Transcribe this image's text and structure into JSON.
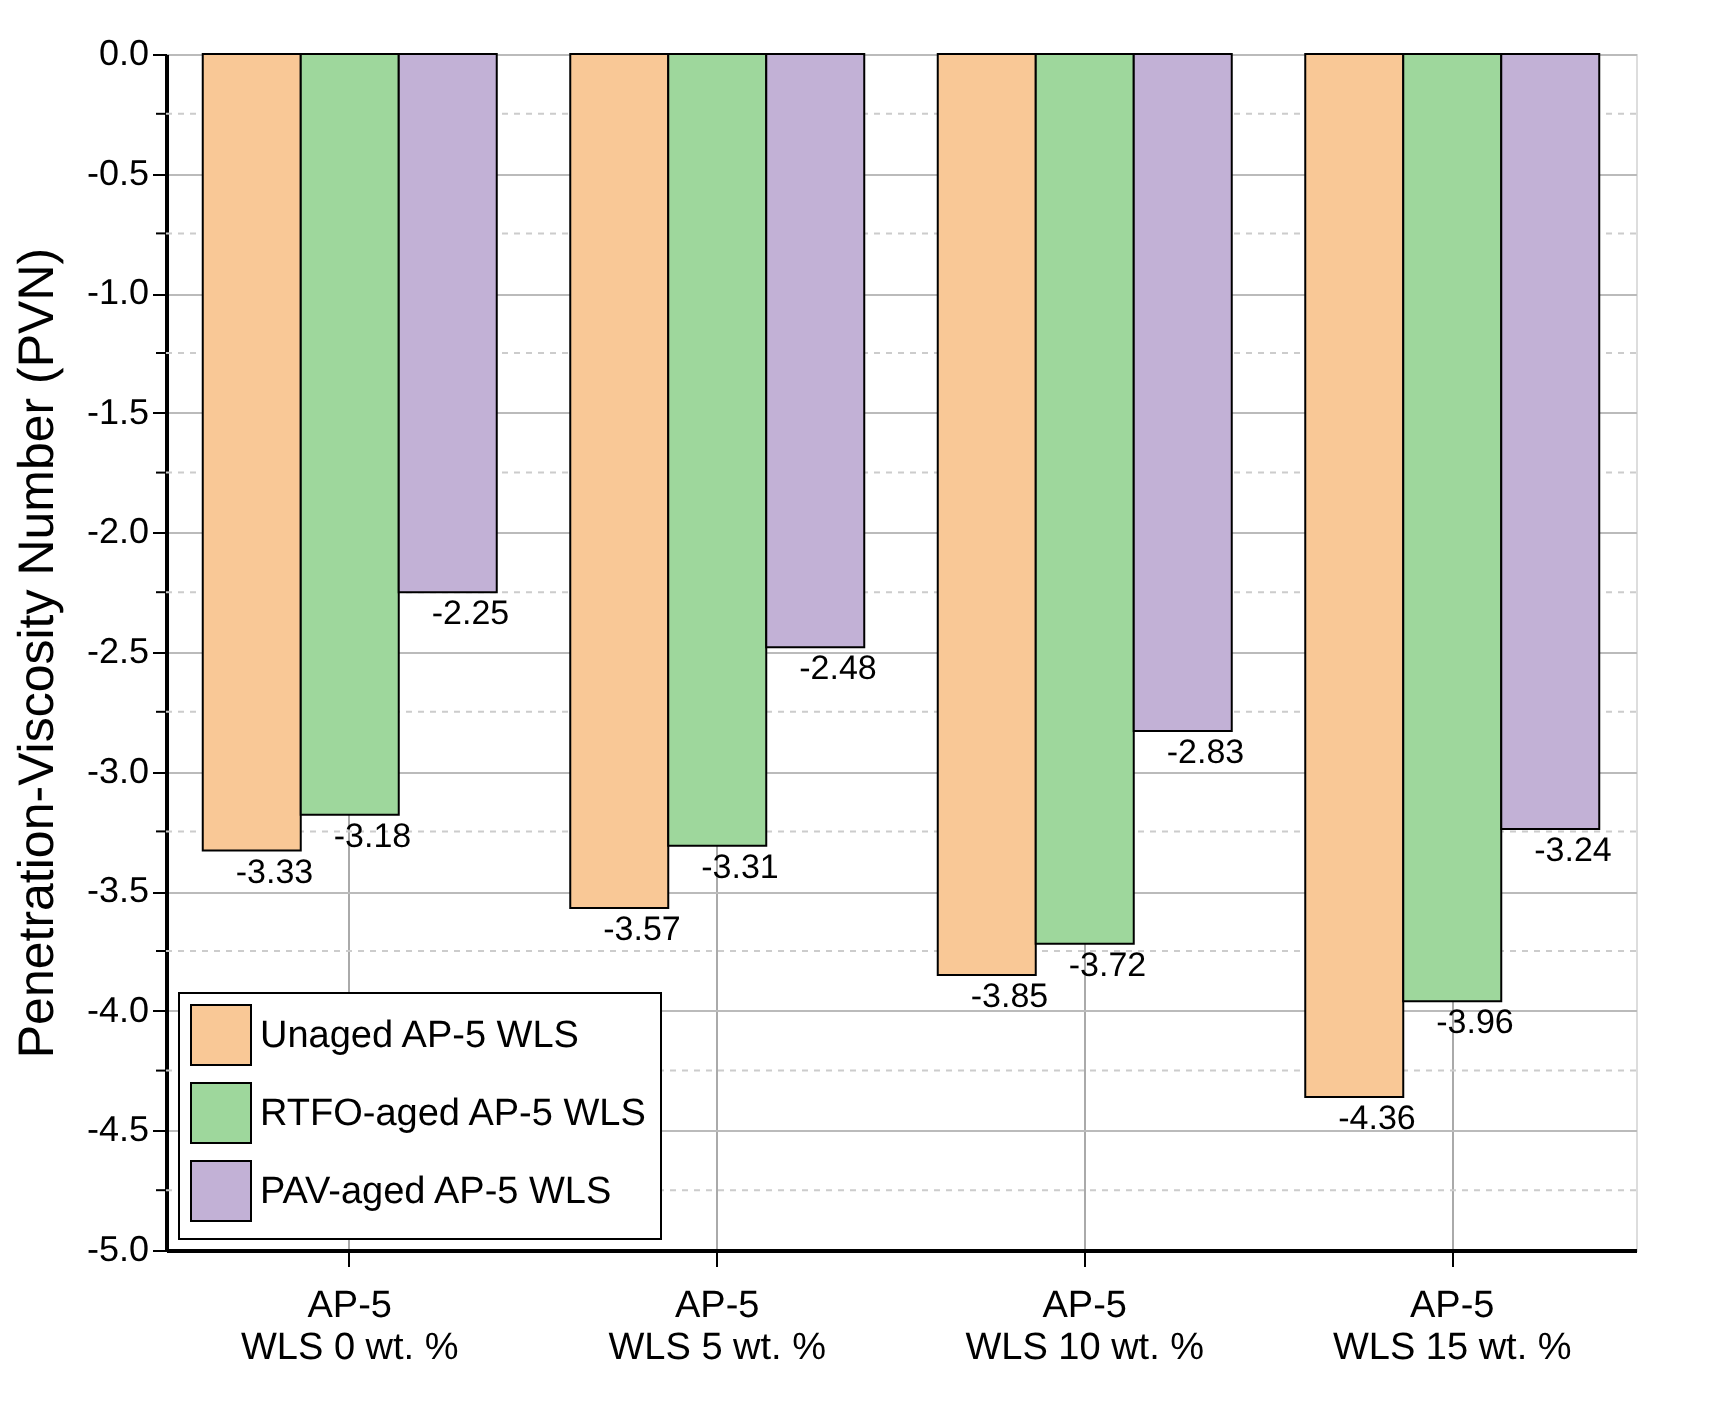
{
  "chart_data": {
    "type": "bar",
    "ylabel": "Penetration-Viscosity Number (PVN)",
    "categories": [
      "AP-5\nWLS 0 wt. %",
      "AP-5\nWLS 5 wt. %",
      "AP-5\nWLS 10 wt. %",
      "AP-5\nWLS 15 wt. %"
    ],
    "series": [
      {
        "name": "Unaged AP-5 WLS",
        "color": "#f9c896",
        "values": [
          -3.33,
          -3.57,
          -3.85,
          -4.36
        ]
      },
      {
        "name": "RTFO-aged AP-5 WLS",
        "color": "#9ed79c",
        "values": [
          -3.18,
          -3.31,
          -3.72,
          -3.96
        ]
      },
      {
        "name": "PAV-aged AP-5 WLS",
        "color": "#c2b1d6",
        "values": [
          -2.25,
          -2.48,
          -2.83,
          -3.24
        ]
      }
    ],
    "ylim": [
      -5.0,
      0.0
    ],
    "yticks": [
      {
        "value": 0,
        "label": "0.0"
      },
      {
        "value": -0.25,
        "label": null
      },
      {
        "value": -0.5,
        "label": "-0.5"
      },
      {
        "value": -0.75,
        "label": null
      },
      {
        "value": -1,
        "label": "-1.0"
      },
      {
        "value": -1.25,
        "label": null
      },
      {
        "value": -1.5,
        "label": "-1.5"
      },
      {
        "value": -1.75,
        "label": null
      },
      {
        "value": -2,
        "label": "-2.0"
      },
      {
        "value": -2.25,
        "label": null
      },
      {
        "value": -2.5,
        "label": "-2.5"
      },
      {
        "value": -2.75,
        "label": null
      },
      {
        "value": -3,
        "label": "-3.0"
      },
      {
        "value": -3.25,
        "label": null
      },
      {
        "value": -3.5,
        "label": "-3.5"
      },
      {
        "value": -3.75,
        "label": null
      },
      {
        "value": -4,
        "label": "-4.0"
      },
      {
        "value": -4.25,
        "label": null
      },
      {
        "value": -4.5,
        "label": "-4.5"
      },
      {
        "value": -4.75,
        "label": null
      },
      {
        "value": -5,
        "label": "-5.0"
      }
    ],
    "data_labels": true,
    "grid": true,
    "legend": "bottom left"
  }
}
